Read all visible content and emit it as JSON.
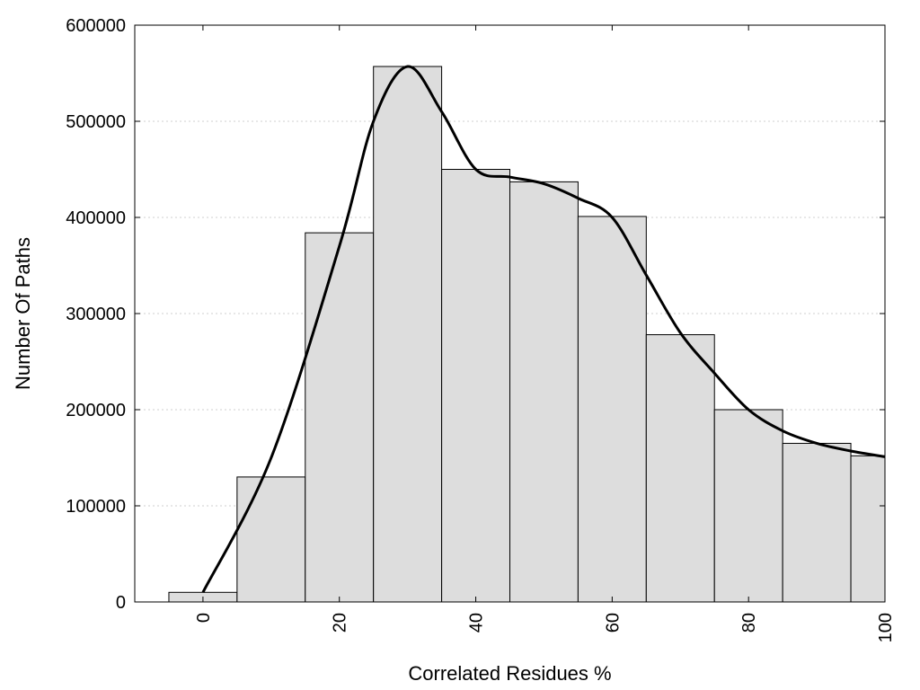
{
  "chart_data": {
    "type": "bar",
    "title": "",
    "xlabel": "Correlated Residues %",
    "ylabel": "Number Of Paths",
    "bin_width": 10,
    "bin_centers": [
      0,
      10,
      20,
      30,
      40,
      50,
      60,
      70,
      80,
      90,
      100
    ],
    "values": [
      10000,
      130000,
      384000,
      557000,
      450000,
      437000,
      401000,
      278000,
      200000,
      165000,
      152000
    ],
    "xlim": [
      -10,
      100
    ],
    "ylim": [
      0,
      600000
    ],
    "x_ticks": [
      0,
      20,
      40,
      60,
      80,
      100
    ],
    "y_ticks": [
      0,
      100000,
      200000,
      300000,
      400000,
      500000,
      600000
    ],
    "x_tick_labels": [
      "0",
      "20",
      "40",
      "60",
      "80",
      "100"
    ],
    "y_tick_labels": [
      "0",
      "100000",
      "200000",
      "300000",
      "400000",
      "500000",
      "600000"
    ],
    "y_grid": true,
    "trend_line": {
      "x": [
        0,
        10,
        20,
        25,
        30,
        35,
        40,
        45,
        50,
        55,
        60,
        65,
        70,
        75,
        80,
        85,
        90,
        95,
        100
      ],
      "y": [
        10000,
        150000,
        370000,
        500000,
        557000,
        510000,
        450000,
        442000,
        435000,
        420000,
        400000,
        340000,
        280000,
        238000,
        200000,
        178000,
        165000,
        157000,
        151000
      ]
    },
    "colors": {
      "bar_fill": "#dddddd",
      "bar_stroke": "#000000",
      "line": "#000000",
      "grid": "#cfcfcf"
    }
  }
}
